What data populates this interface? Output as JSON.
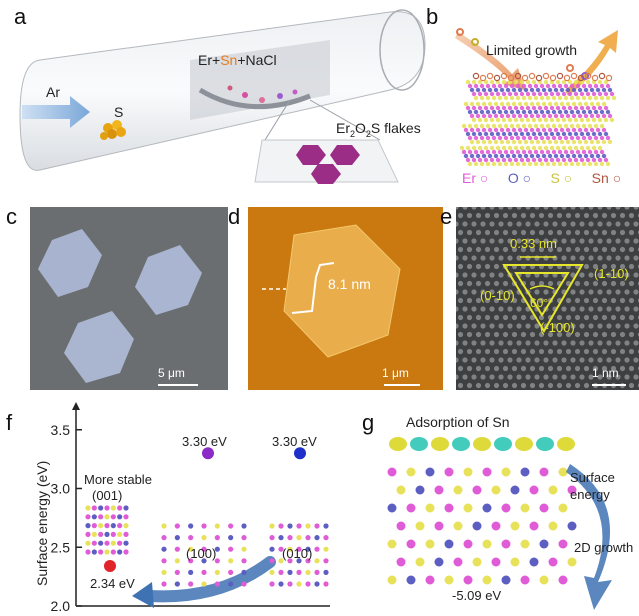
{
  "panel_a": {
    "label": "a",
    "gas": "Ar",
    "sulfur": "S",
    "precursor": [
      "Er+",
      "Sn",
      "+NaCl"
    ],
    "product": [
      "Er",
      "2",
      "O",
      "2",
      "S flakes"
    ]
  },
  "panel_b": {
    "label": "b",
    "caption": "Limited growth",
    "legend": [
      "Er",
      "O",
      "S",
      "Sn"
    ]
  },
  "panel_c": {
    "label": "c",
    "scalebar": "5 μm"
  },
  "panel_d": {
    "label": "d",
    "height": "8.1 nm",
    "scalebar": "1 μm"
  },
  "panel_e": {
    "label": "e",
    "spacing": "0.33 nm",
    "angle": "60°",
    "facets": [
      "(1-10)",
      "(0-10)",
      "(-100)"
    ],
    "scalebar": "1 nm"
  },
  "panel_f": {
    "label": "f"
  },
  "panel_g": {
    "label": "g",
    "title": "Adsorption of Sn",
    "energy_label": [
      "Surface",
      "energy"
    ],
    "growth": "2D growth",
    "value": "-5.09 eV"
  },
  "colors": {
    "flake": "#9b2d87",
    "afm": "#c9790f",
    "optical_bg": "#6b6e70",
    "arrow": "#3f72b3",
    "er": "#e05cd6",
    "o": "#5d5ec2",
    "s": "#e8e25a",
    "sn": "#b0553f"
  },
  "chart_data": {
    "type": "scatter",
    "ylabel": "Surface energy (eV)",
    "yticks": [
      "3.5",
      "3.0",
      "2.5",
      "2.0"
    ],
    "ylim": [
      2.0,
      3.6
    ],
    "points": [
      {
        "facet": "(001)",
        "note": "More stable",
        "y": 2.34,
        "label": "2.34 eV",
        "color": "#e0242a"
      },
      {
        "facet": "(100)",
        "y": 3.3,
        "label": "3.30 eV",
        "color": "#8a2bc7"
      },
      {
        "facet": "(010)",
        "y": 3.3,
        "label": "3.30 eV",
        "color": "#1f2fc9"
      }
    ]
  }
}
